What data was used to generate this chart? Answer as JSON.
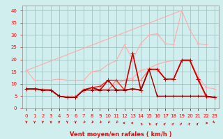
{
  "x": [
    0,
    1,
    2,
    3,
    4,
    5,
    6,
    7,
    8,
    9,
    10,
    11,
    12,
    13,
    14,
    15,
    16,
    17,
    18,
    19,
    20,
    21,
    22,
    23
  ],
  "series": [
    {
      "name": "line1_light",
      "color": "#ffaaaa",
      "lw": 0.8,
      "marker": "+",
      "markersize": 3,
      "y": [
        15.5,
        null,
        null,
        null,
        null,
        null,
        null,
        null,
        null,
        null,
        null,
        null,
        null,
        null,
        null,
        null,
        null,
        null,
        null,
        40.0,
        null,
        null,
        null,
        null
      ]
    },
    {
      "name": "line1_triangle_upper",
      "color": "#ffaaaa",
      "lw": 0.8,
      "marker": "+",
      "markersize": 3,
      "y": [
        15.5,
        11.5,
        11.5,
        11.5,
        12.0,
        11.5,
        11.5,
        11.5,
        15.0,
        15.5,
        18.0,
        19.5,
        26.0,
        20.0,
        26.5,
        30.0,
        30.5,
        26.5,
        26.0,
        40.0,
        32.0,
        26.5,
        26.0,
        null
      ]
    },
    {
      "name": "line2_lower_light",
      "color": "#ffaaaa",
      "lw": 0.8,
      "marker": "+",
      "markersize": 3,
      "y": [
        8.0,
        8.0,
        8.0,
        7.5,
        5.0,
        5.0,
        5.0,
        8.0,
        8.0,
        7.5,
        8.0,
        10.0,
        11.5,
        12.5,
        15.5,
        16.5,
        18.0,
        19.0,
        19.5,
        19.5,
        20.0,
        13.0,
        8.5,
        8.0
      ]
    },
    {
      "name": "line3_medium",
      "color": "#ff7777",
      "lw": 0.9,
      "marker": "+",
      "markersize": 3,
      "y": [
        8.0,
        8.0,
        7.5,
        7.5,
        5.0,
        4.5,
        4.5,
        7.5,
        7.5,
        7.5,
        7.5,
        11.5,
        11.5,
        11.5,
        11.5,
        16.0,
        16.0,
        12.0,
        12.0,
        20.0,
        20.0,
        11.5,
        4.5,
        4.5
      ]
    },
    {
      "name": "line4_red",
      "color": "#ff2222",
      "lw": 1.0,
      "marker": "+",
      "markersize": 3,
      "y": [
        8.0,
        8.0,
        7.5,
        7.5,
        5.0,
        4.5,
        4.5,
        7.5,
        8.5,
        9.0,
        11.5,
        11.5,
        7.5,
        8.0,
        7.5,
        16.0,
        16.0,
        12.0,
        12.0,
        19.5,
        19.5,
        12.0,
        5.0,
        4.5
      ]
    },
    {
      "name": "line5_darkred_spike",
      "color": "#cc0000",
      "lw": 1.2,
      "marker": "+",
      "markersize": 4,
      "y": [
        8.0,
        8.0,
        7.5,
        7.5,
        5.0,
        4.5,
        4.5,
        7.5,
        8.5,
        7.5,
        11.5,
        7.5,
        7.5,
        22.5,
        7.5,
        16.0,
        16.0,
        12.0,
        12.0,
        19.5,
        19.5,
        12.0,
        5.0,
        4.5
      ]
    },
    {
      "name": "line6_darkred_low",
      "color": "#990000",
      "lw": 1.0,
      "marker": "+",
      "markersize": 3,
      "y": [
        8.0,
        8.0,
        7.5,
        7.5,
        5.0,
        4.5,
        4.5,
        7.5,
        7.5,
        7.5,
        7.5,
        7.5,
        7.5,
        8.0,
        7.5,
        16.0,
        5.0,
        5.0,
        5.0,
        5.0,
        5.0,
        5.0,
        5.0,
        4.5
      ]
    }
  ],
  "wind_arrows": {
    "x": [
      0,
      1,
      2,
      3,
      4,
      5,
      6,
      7,
      8,
      9,
      10,
      11,
      12,
      13,
      14,
      15,
      16,
      17,
      18,
      19,
      20,
      21,
      22,
      23
    ],
    "angles_deg": [
      180,
      180,
      180,
      180,
      180,
      180,
      180,
      225,
      225,
      225,
      225,
      225,
      270,
      270,
      315,
      315,
      45,
      45,
      45,
      45,
      45,
      45,
      90,
      135
    ]
  },
  "xlim": [
    -0.5,
    23.5
  ],
  "ylim": [
    0,
    42
  ],
  "yticks": [
    0,
    5,
    10,
    15,
    20,
    25,
    30,
    35,
    40
  ],
  "xtick_labels": [
    "0",
    "1",
    "2",
    "3",
    "4",
    "5",
    "6",
    "7",
    "8",
    "9",
    "10",
    "11",
    "12",
    "13",
    "14",
    "15",
    "16",
    "17",
    "18",
    "19",
    "20",
    "21",
    "22",
    "23"
  ],
  "xlabel": "Vent moyen/en rafales ( km/h )",
  "bg_color": "#d0eeee",
  "grid_color": "#99bbbb",
  "arrow_color": "#cc0000",
  "axis_fontsize": 6,
  "tick_fontsize": 5
}
